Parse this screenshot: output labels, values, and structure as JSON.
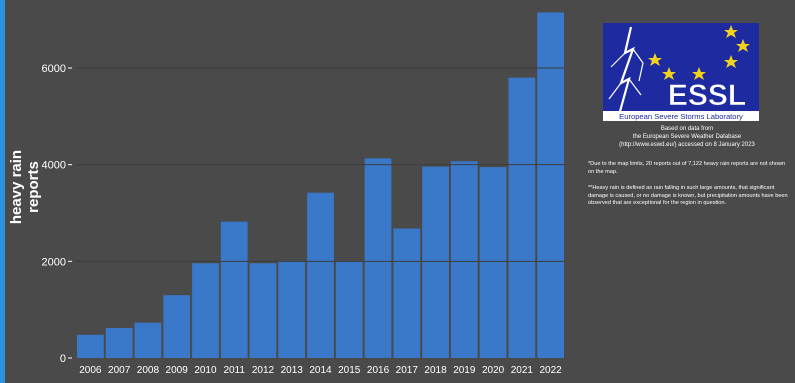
{
  "chart_data": {
    "type": "bar",
    "categories": [
      "2006",
      "2007",
      "2008",
      "2009",
      "2010",
      "2011",
      "2012",
      "2013",
      "2014",
      "2015",
      "2016",
      "2017",
      "2018",
      "2019",
      "2020",
      "2021",
      "2022"
    ],
    "values": [
      480,
      620,
      730,
      1300,
      1960,
      2820,
      1960,
      2010,
      3420,
      1990,
      4130,
      2680,
      3960,
      4070,
      3950,
      5800,
      7150
    ],
    "ylabel": "heavy rain reports",
    "xlabel": "",
    "title": "",
    "ylim": [
      0,
      7200
    ],
    "yticks": [
      0,
      2000,
      4000,
      6000
    ],
    "grid": true,
    "bar_color": "#3a78c9",
    "background": "#4a4a4a"
  },
  "logo": {
    "name": "ESSL",
    "subtitle": "European Severe Storms Laboratory",
    "background": "#1d2aa0"
  },
  "source_lines": [
    "Based on data from",
    "the European Severe Weather Database",
    "(http://www.eswd.eu/) accessed on 8 January 2023"
  ],
  "note1": "*Due to the map limits, 20 reports out of 7,122 heavy rain reports are not shown on the map.",
  "note2": "**Heavy rain is defined as rain falling in such large amounts, that significant damage is caused, or no damage is known, but precipitation amounts have been observed that are exceptional for the region in question."
}
